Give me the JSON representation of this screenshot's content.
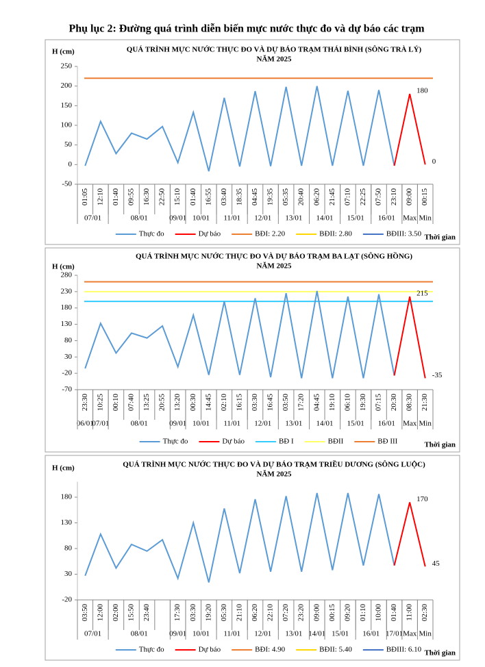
{
  "page_title": "Phụ lục 2: Đường quá trình diễn biến mực nước thực đo và dự báo các trạm",
  "chart_data": [
    {
      "type": "line",
      "title": "QUÁ TRÌNH MỰC NƯỚC THỰC ĐO VÀ DỰ BÁO TRẠM THÁI BÌNH (SÔNG TRÀ LÝ)",
      "subtitle": "NĂM 2025",
      "y_label": "H (cm)",
      "x_label": "Thời gian",
      "categories": [
        "01:05",
        "12:10",
        "01:40",
        "09:55",
        "16:30",
        "22:50",
        "15:10",
        "01:40",
        "16:55",
        "03:40",
        "18:35",
        "04:45",
        "19:35",
        "05:35",
        "20:40",
        "06:20",
        "21:45",
        "07:10",
        "22:25",
        "07:50",
        "23:10",
        "09:00",
        "00:15"
      ],
      "groups": [
        {
          "label": "07/01",
          "span": 2
        },
        {
          "label": "08/01",
          "span": 4
        },
        {
          "label": "09/01",
          "span": 1
        },
        {
          "label": "10/01",
          "span": 2
        },
        {
          "label": "11/01",
          "span": 2
        },
        {
          "label": "12/01",
          "span": 2
        },
        {
          "label": "13/01",
          "span": 2
        },
        {
          "label": "14/01",
          "span": 2
        },
        {
          "label": "15/01",
          "span": 2
        },
        {
          "label": "16/01",
          "span": 2
        },
        {
          "label": "Max",
          "span": 1
        },
        {
          "label": "Min",
          "span": 1
        }
      ],
      "series": [
        {
          "name": "Thực đo",
          "color": "#5b9bd5",
          "values": [
            -3,
            110,
            28,
            80,
            65,
            97,
            5,
            133,
            -17,
            170,
            -5,
            187,
            -4,
            198,
            -3,
            200,
            -3,
            188,
            -3,
            190,
            -3,
            null,
            null
          ]
        },
        {
          "name": "Dự báo",
          "color": "#ff0000",
          "values": [
            null,
            null,
            null,
            null,
            null,
            null,
            null,
            null,
            null,
            null,
            null,
            null,
            null,
            null,
            null,
            null,
            null,
            null,
            null,
            null,
            -3,
            180,
            0
          ]
        }
      ],
      "thresholds": [
        {
          "name": "BĐI: 2.20",
          "color": "#ed7d31",
          "value": 220
        },
        {
          "name": "BĐII: 2.80",
          "color": "#ffd700",
          "value": 280
        },
        {
          "name": "BĐIII: 3.50",
          "color": "#4472c4",
          "value": 350
        }
      ],
      "ylim": [
        -50,
        250
      ],
      "yticks": [
        -50,
        0,
        50,
        100,
        150,
        200,
        250
      ]
    },
    {
      "type": "line",
      "title": "QUÁ TRÌNH MỰC NƯỚC THỰC ĐO VÀ DỰ BÁO TRẠM BA LẠT (SÔNG HỒNG)",
      "subtitle": "NĂM 2025",
      "y_label": "H (cm)",
      "x_label": "Thời gian",
      "categories": [
        "23:30",
        "10:25",
        "00:10",
        "07:40",
        "13:25",
        "20:55",
        "13:20",
        "00:30",
        "14:45",
        "02:10",
        "16:15",
        "03:30",
        "16:45",
        "03:50",
        "17:20",
        "04:45",
        "19:10",
        "06:10",
        "19:30",
        "07:15",
        "20:30",
        "08:30",
        "21:30"
      ],
      "groups": [
        {
          "label": "06/01",
          "span": 1
        },
        {
          "label": "07/01",
          "span": 1
        },
        {
          "label": "08/01",
          "span": 4
        },
        {
          "label": "09/01",
          "span": 1
        },
        {
          "label": "10/01",
          "span": 2
        },
        {
          "label": "11/01",
          "span": 2
        },
        {
          "label": "12/01",
          "span": 2
        },
        {
          "label": "13/01",
          "span": 2
        },
        {
          "label": "14/01",
          "span": 2
        },
        {
          "label": "15/01",
          "span": 2
        },
        {
          "label": "16/01",
          "span": 2
        },
        {
          "label": "Max",
          "span": 1
        },
        {
          "label": "Min",
          "span": 1
        }
      ],
      "series": [
        {
          "name": "Thực đo",
          "color": "#5b9bd5",
          "values": [
            -5,
            133,
            42,
            103,
            88,
            125,
            0,
            158,
            -25,
            200,
            -25,
            210,
            -32,
            225,
            -35,
            232,
            -35,
            215,
            -35,
            222,
            -27,
            null,
            null
          ]
        },
        {
          "name": "Dự báo",
          "color": "#ff0000",
          "values": [
            null,
            null,
            null,
            null,
            null,
            null,
            null,
            null,
            null,
            null,
            null,
            null,
            null,
            null,
            null,
            null,
            null,
            null,
            null,
            null,
            -27,
            215,
            -35
          ]
        }
      ],
      "thresholds": [
        {
          "name": "BĐ I",
          "color": "#33ccff",
          "value": 200
        },
        {
          "name": "BĐII",
          "color": "#ffff66",
          "value": 230
        },
        {
          "name": "BĐ III",
          "color": "#ed7d31",
          "value": 260
        }
      ],
      "ylim": [
        -70,
        280
      ],
      "yticks": [
        -70,
        -20,
        30,
        80,
        130,
        180,
        230,
        280
      ]
    },
    {
      "type": "line",
      "title": "QUÁ TRÌNH MỰC NƯỚC THỰC ĐO VÀ DỰ BÁO TRẠM TRIỀU DƯƠNG (SÔNG LUỘC)",
      "subtitle": "NĂM 2025",
      "y_label": "H (cm)",
      "x_label": "Thời gian",
      "categories": [
        "03:50",
        "12:00",
        "02:00",
        "15:50",
        "23:40",
        null,
        "17:30",
        "03:30",
        "19:20",
        "05:30",
        "21:10",
        "06:20",
        "22:10",
        "07:20",
        "23:20",
        "09:00",
        "00:15",
        "09:20",
        "01:10",
        "10:00",
        "01:40",
        "11:00",
        "02:30"
      ],
      "groups": [
        {
          "label": "07/01",
          "span": 2
        },
        {
          "label": "08/01",
          "span": 4
        },
        {
          "label": "09/01",
          "span": 1
        },
        {
          "label": "10/01",
          "span": 2
        },
        {
          "label": "11/01",
          "span": 2
        },
        {
          "label": "12/01",
          "span": 2
        },
        {
          "label": "13/01",
          "span": 2
        },
        {
          "label": "14/01",
          "span": 1
        },
        {
          "label": "15/01",
          "span": 2
        },
        {
          "label": "16/01",
          "span": 2
        },
        {
          "label": "17/01",
          "span": 1
        },
        {
          "label": "Max",
          "span": 1
        },
        {
          "label": "Min",
          "span": 1
        }
      ],
      "series": [
        {
          "name": "Thực đo",
          "color": "#5b9bd5",
          "values": [
            27,
            108,
            42,
            88,
            75,
            97,
            22,
            130,
            14,
            158,
            32,
            176,
            35,
            182,
            35,
            188,
            38,
            188,
            47,
            186,
            47,
            null,
            null
          ]
        },
        {
          "name": "Dự báo",
          "color": "#ff0000",
          "values": [
            null,
            null,
            null,
            null,
            null,
            null,
            null,
            null,
            null,
            null,
            null,
            null,
            null,
            null,
            null,
            null,
            null,
            null,
            null,
            null,
            47,
            170,
            45
          ]
        }
      ],
      "thresholds": [
        {
          "name": "BĐI: 4.90",
          "color": "#ed7d31",
          "value": 490
        },
        {
          "name": "BĐII: 5.40",
          "color": "#ffd700",
          "value": 540
        },
        {
          "name": "BĐIII: 6.10",
          "color": "#4472c4",
          "value": 610
        }
      ],
      "ylim": [
        -20,
        210
      ],
      "yticks": [
        -20,
        30,
        80,
        130,
        180
      ]
    }
  ]
}
